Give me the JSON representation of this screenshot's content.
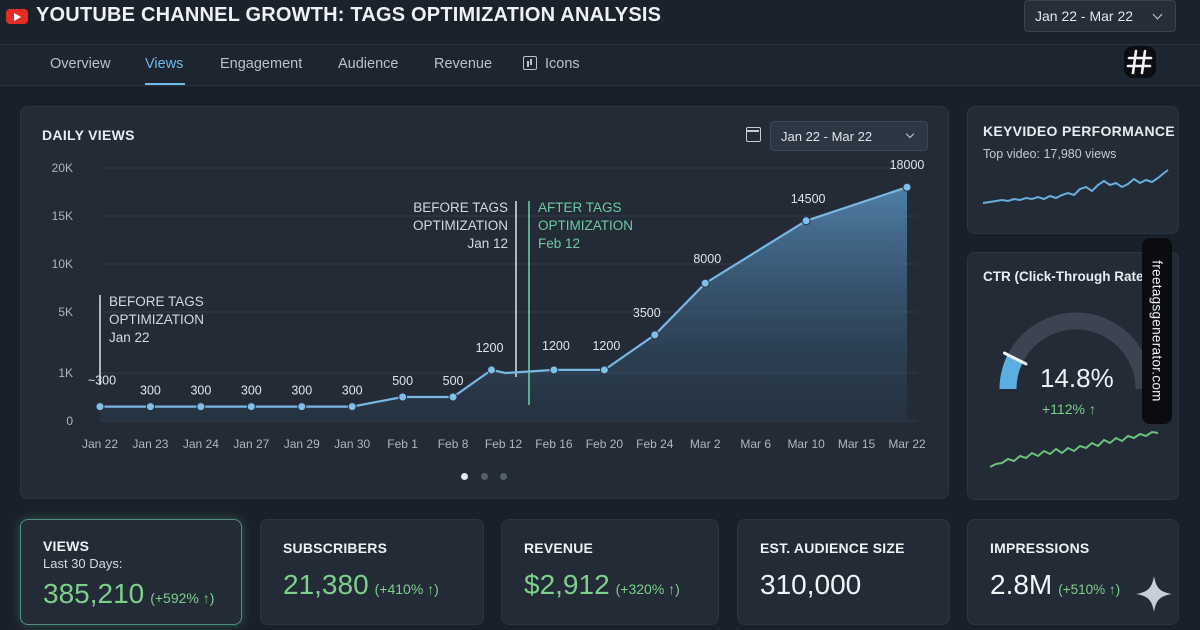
{
  "header": {
    "title": "YOUTUBE CHANNEL GROWTH: TAGS OPTIMIZATION ANALYSIS",
    "date_range": "Jan 22 - Mar 22"
  },
  "tabs": [
    {
      "label": "Overview",
      "active": false
    },
    {
      "label": "Views",
      "active": true
    },
    {
      "label": "Engagement",
      "active": false
    },
    {
      "label": "Audience",
      "active": false
    },
    {
      "label": "Revenue",
      "active": false
    },
    {
      "label": "Icons",
      "active": false
    }
  ],
  "daily_views": {
    "title": "DAILY VIEWS",
    "date_range": "Jan 22 - Mar 22",
    "annotations": [
      {
        "lines": [
          "BEFORE TAGS",
          "OPTIMIZATION",
          "Jan 22"
        ]
      },
      {
        "lines": [
          "BEFORE TAGS",
          "OPTIMIZATION",
          "Jan 12"
        ]
      },
      {
        "lines": [
          "AFTER TAGS",
          "OPTIMIZATION",
          "Feb 12"
        ]
      }
    ],
    "pagination": {
      "pages": 3,
      "active": 0
    }
  },
  "chart_data": {
    "type": "area",
    "title": "DAILY VIEWS",
    "categories": [
      "Jan 22",
      "Jan 23",
      "Jan 24",
      "Jan 27",
      "Jan 29",
      "Jan 30",
      "Feb 1",
      "Feb 8",
      "Feb 12",
      "Feb 16",
      "Feb 20",
      "Feb 24",
      "Mar 2",
      "Mar 6",
      "Mar 10",
      "Mar 15",
      "Mar 22"
    ],
    "y_ticks": [
      "0",
      "1K",
      "5K",
      "10K",
      "15K",
      "20K"
    ],
    "series": [
      {
        "points": [
          {
            "x": "Jan 22",
            "y": 300,
            "label": "~300"
          },
          {
            "x": "Jan 23",
            "y": 300,
            "label": "300"
          },
          {
            "x": "Jan 24",
            "y": 300,
            "label": "300"
          },
          {
            "x": "Jan 27",
            "y": 300,
            "label": "300"
          },
          {
            "x": "Jan 29",
            "y": 300,
            "label": "300"
          },
          {
            "x": "Jan 30",
            "y": 300,
            "label": "300"
          },
          {
            "x": "Feb 1",
            "y": 500,
            "label": "500"
          },
          {
            "x": "Feb 8",
            "y": 500,
            "label": "500"
          },
          {
            "x": "Feb 12",
            "y": 1200,
            "label": "1200"
          },
          {
            "x": "Feb 16",
            "y": 1200,
            "label": "1200"
          },
          {
            "x": "Feb 20",
            "y": 1200,
            "label": "1200"
          },
          {
            "x": "Feb 24",
            "y": 3500,
            "label": "3500"
          },
          {
            "x": "Mar 2",
            "y": 8000,
            "label": "8000"
          },
          {
            "x": "Mar 10",
            "y": 14500,
            "label": "14500"
          },
          {
            "x": "Mar 22",
            "y": 18000,
            "label": "18000"
          }
        ]
      }
    ],
    "grid": true,
    "legend": "none"
  },
  "key_video": {
    "title": "KEYVIDEO PERFORMANCE",
    "subtitle": "Top video: 17,980 views"
  },
  "ctr": {
    "title": "CTR (Click-Through Rate",
    "value": "14.8%",
    "delta": "+112% ↑",
    "gauge_fraction": 0.148
  },
  "side_tag": "freetagsgenerator.com",
  "stats": [
    {
      "label": "VIEWS",
      "sub": "Last 30 Days:",
      "value": "385,210",
      "delta": "(+592% ↑)"
    },
    {
      "label": "SUBSCRIBERS",
      "value": "21,380",
      "delta": "(+410% ↑)"
    },
    {
      "label": "REVENUE",
      "value": "$2,912",
      "delta": "(+320% ↑)"
    },
    {
      "label": "EST. AUDIENCE SIZE",
      "value": "310,000"
    },
    {
      "label": "IMPRESSIONS",
      "value": "2.8M",
      "delta": "(+510% ↑)"
    }
  ],
  "colors": {
    "accent": "#6fb8ec",
    "positive": "#7dd08b",
    "line": "#79b6e2",
    "youtube_red": "#e52d27"
  }
}
